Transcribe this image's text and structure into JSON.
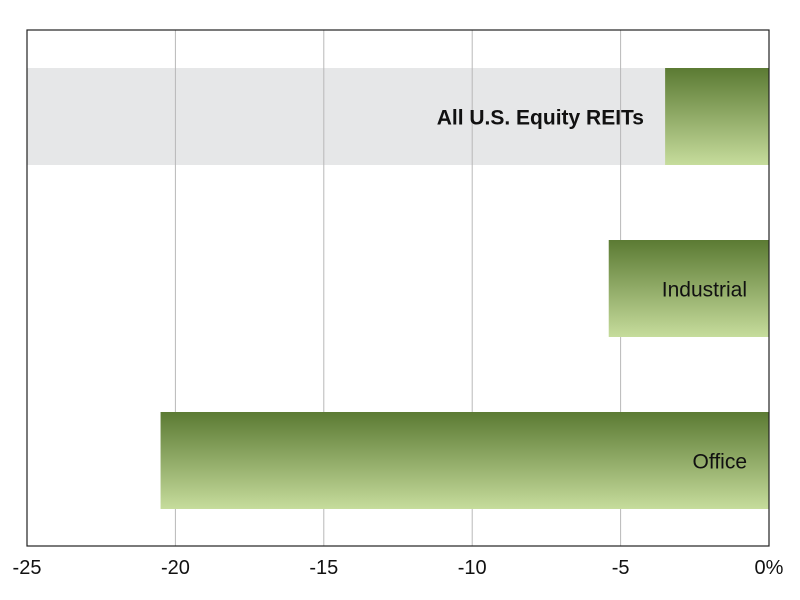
{
  "chart_data": {
    "type": "bar",
    "orientation": "horizontal",
    "categories": [
      "All U.S. Equity REITs",
      "Industrial",
      "Office"
    ],
    "values": [
      -3.5,
      -5.4,
      -20.5
    ],
    "highlighted_category": "All U.S. Equity REITs",
    "xlim": [
      -25,
      0
    ],
    "x_ticks": [
      -25,
      -20,
      -15,
      -10,
      -5,
      0
    ],
    "x_tick_labels": [
      "-25",
      "-20",
      "-15",
      "-10",
      "-5",
      "0%"
    ],
    "grid": "vertical",
    "colors": {
      "bar_top": "#5b7a33",
      "bar_bottom": "#c6dc9c",
      "highlight_band": "#e6e7e8",
      "grid": "#b8b8b8",
      "axis": "#222222"
    }
  }
}
